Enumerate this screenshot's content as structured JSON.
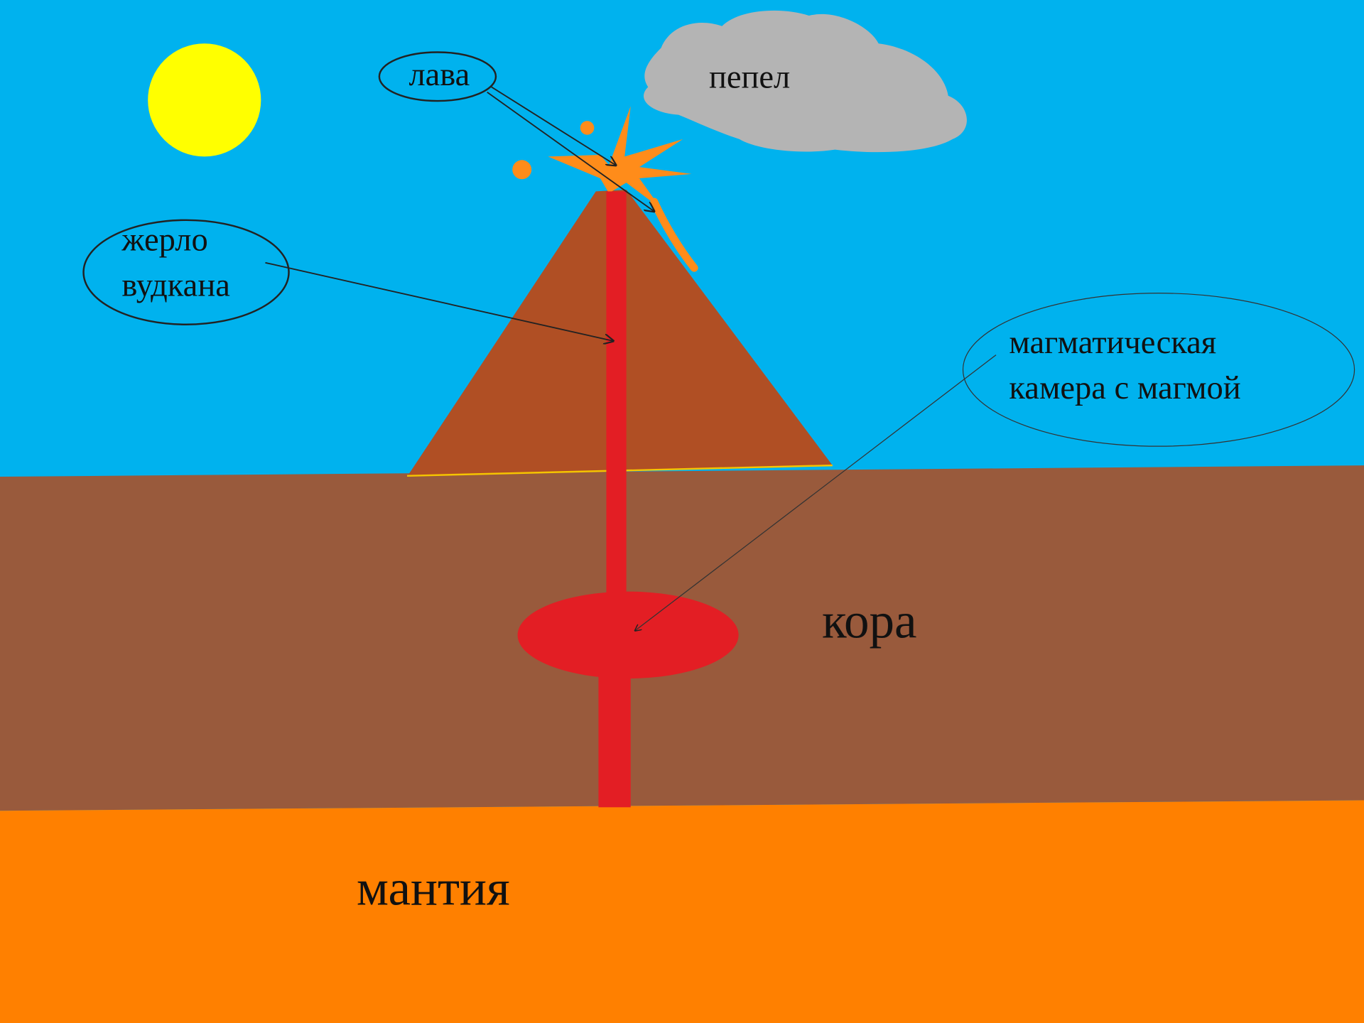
{
  "labels": {
    "lava": "лава",
    "ash": "пепел",
    "vent": [
      "жерло",
      "вудкана"
    ],
    "chamber": [
      "магматическая",
      "камера с магмой"
    ],
    "crust": "кора",
    "mantle": "мантия"
  }
}
